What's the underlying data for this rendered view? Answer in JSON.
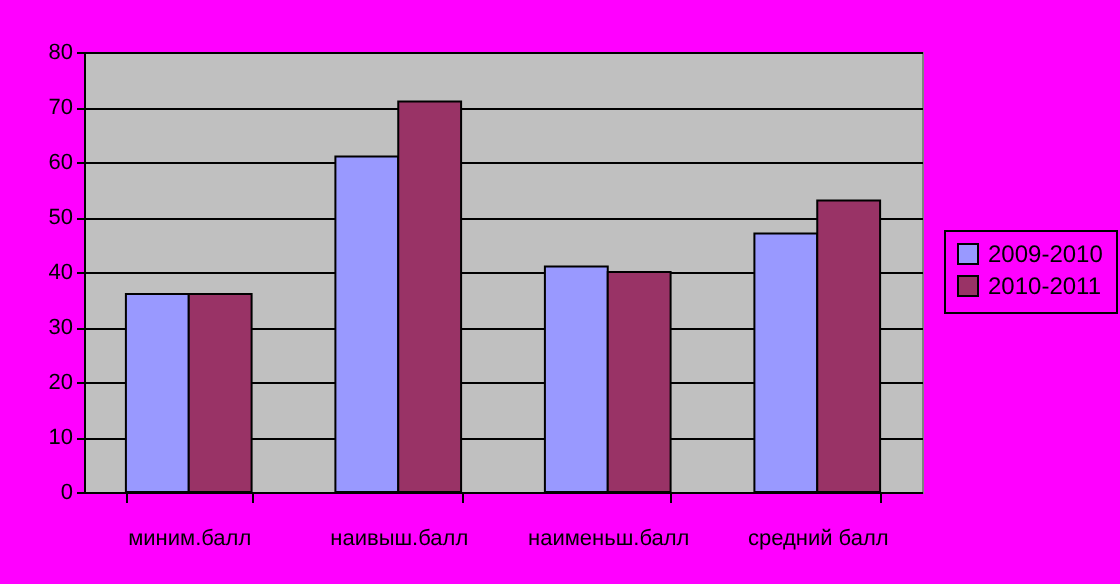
{
  "chart_data": {
    "type": "bar",
    "categories": [
      "миним.балл",
      "наивыш.балл",
      "наименьш.балл",
      "средний балл"
    ],
    "series": [
      {
        "name": "2009-2010",
        "color": "#9999ff",
        "values": [
          36,
          61,
          41,
          47
        ]
      },
      {
        "name": "2010-2011",
        "color": "#993366",
        "values": [
          36,
          71,
          40,
          53
        ]
      }
    ],
    "ylim": [
      0,
      80
    ],
    "yticks": [
      0,
      10,
      20,
      30,
      40,
      50,
      60,
      70,
      80
    ],
    "grid": "y",
    "legend": "right"
  }
}
